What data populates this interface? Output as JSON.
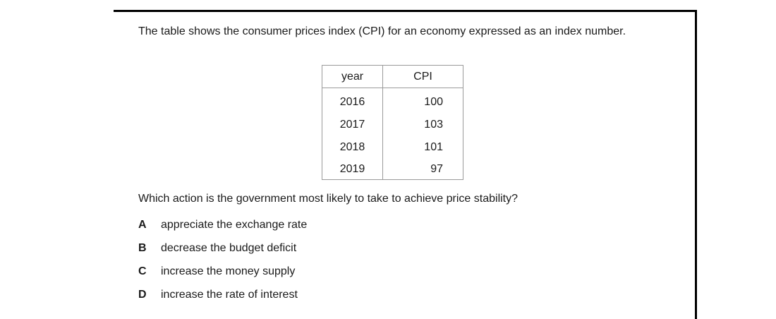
{
  "stem": "The table shows the consumer prices index (CPI) for an economy expressed as an index number.",
  "table": {
    "headers": [
      "year",
      "CPI"
    ],
    "rows": [
      [
        "2016",
        "100"
      ],
      [
        "2017",
        "103"
      ],
      [
        "2018",
        "101"
      ],
      [
        "2019",
        "97"
      ]
    ]
  },
  "question": "Which action is the government most likely to take to achieve price stability?",
  "options": [
    {
      "letter": "A",
      "text": "appreciate the exchange rate"
    },
    {
      "letter": "B",
      "text": "decrease the budget deficit"
    },
    {
      "letter": "C",
      "text": "increase the money supply"
    },
    {
      "letter": "D",
      "text": "increase the rate of interest"
    }
  ]
}
